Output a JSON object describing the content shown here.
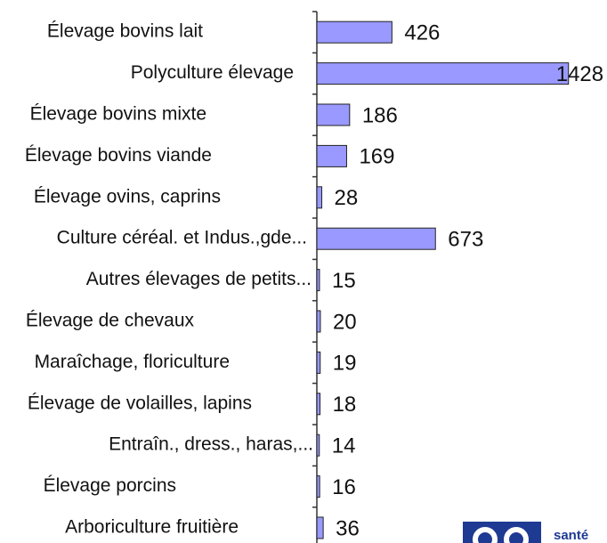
{
  "chart_data": {
    "type": "bar",
    "orientation": "horizontal",
    "categories": [
      "Élevage bovins lait",
      "Polyculture élevage",
      "Élevage bovins mixte",
      "Élevage bovins viande",
      "Élevage ovins, caprins",
      "Culture céréal. et Indus.,gde...",
      "Autres élevages de petits...",
      "Élevage de chevaux",
      "Maraîchage, floriculture",
      "Élevage de volailles, lapins",
      "Entraîn., dress., haras,...",
      "Élevage porcins",
      "Arboriculture fruitière"
    ],
    "values": [
      426,
      1428,
      186,
      169,
      28,
      673,
      15,
      20,
      19,
      18,
      14,
      16,
      36
    ],
    "color": "#9999ff"
  },
  "logo_text": "santé"
}
